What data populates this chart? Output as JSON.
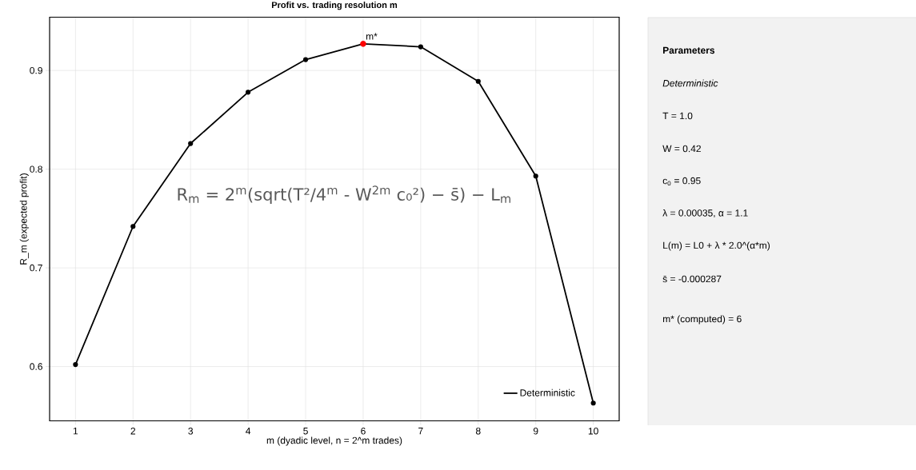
{
  "chart_data": [
    {
      "type": "line",
      "title": "Profit vs. trading resolution m",
      "xlabel": "m (dyadic level, n = 2^m trades)",
      "ylabel": "R_m (expected profit)",
      "x": [
        1,
        2,
        3,
        4,
        5,
        6,
        7,
        8,
        9,
        10
      ],
      "series": [
        {
          "name": "Deterministic",
          "color": "#000000",
          "values": [
            0.602,
            0.742,
            0.826,
            0.878,
            0.911,
            0.927,
            0.924,
            0.889,
            0.793,
            0.563
          ]
        },
        {
          "type": "scatter",
          "color": "#ff0000",
          "x": [
            6
          ],
          "values": [
            0.927
          ]
        }
      ],
      "xlim": [
        0.55,
        10.45
      ],
      "ylim": [
        0.545,
        0.954
      ],
      "xticks": [
        1,
        2,
        3,
        4,
        5,
        6,
        7,
        8,
        9,
        10
      ],
      "yticks": [
        0.6,
        0.7,
        0.8,
        0.9
      ],
      "grid": true,
      "legend": "bottom right",
      "marker": "circle",
      "line_style": "solid",
      "annotations": [
        "R$_{m}$ = 2$^{m}$(sqrt(T²/4$^{m}$ - W$^{2m}$ c₀²) − s̄) − L$_{m}$",
        {
          "text": "m*",
          "x": 6,
          "y": 0.927
        }
      ]
    },
    {
      "type": "other",
      "title": "Parameters",
      "subtitle": "Deterministic",
      "annotations": [
        "T = 1.0",
        "W = 0.42",
        "c$_{0}$ = 0.95",
        "λ = 0.00035,  α = 1.1",
        "L(m) = L0 + λ * 2.0^(α*m)",
        "s̄ = -0.000287",
        "m* (computed) = 6"
      ]
    }
  ]
}
